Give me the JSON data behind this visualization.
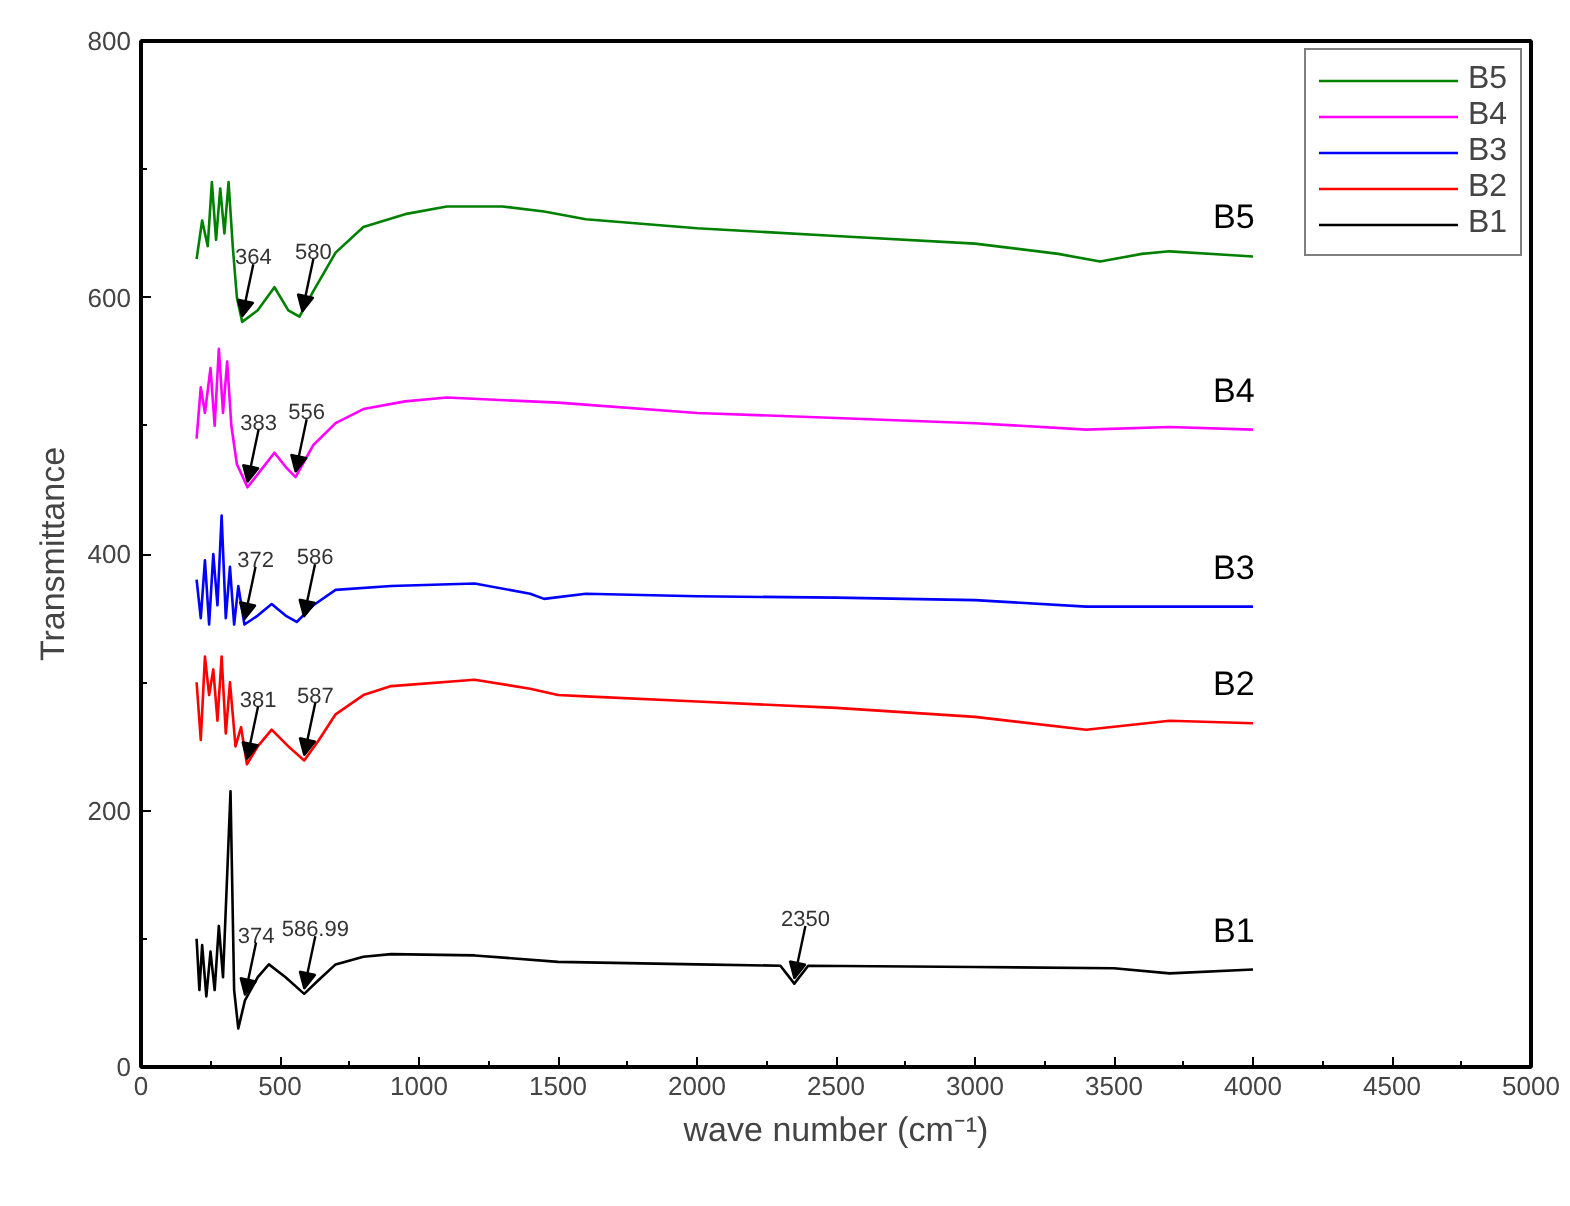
{
  "chart_data": {
    "type": "line",
    "xlabel": "wave number (cm⁻¹)",
    "ylabel": "Transmittance",
    "xlim": [
      0,
      5000
    ],
    "xticks": [
      0,
      500,
      1000,
      1500,
      2000,
      2500,
      3000,
      3500,
      4000,
      4500,
      5000
    ],
    "ylim": [
      0,
      800
    ],
    "yticks": [
      0,
      200,
      400,
      600,
      800
    ],
    "grid": false,
    "legend": "top right",
    "marker": "none",
    "line_style": "solid",
    "series": [
      {
        "name": "B5",
        "color": "#008000",
        "x": [
          200,
          220,
          240,
          255,
          270,
          285,
          300,
          315,
          330,
          345,
          364,
          420,
          480,
          530,
          570,
          620,
          700,
          800,
          950,
          1100,
          1300,
          1450,
          1600,
          2000,
          2500,
          3000,
          3300,
          3450,
          3600,
          3700,
          4000
        ],
        "values": [
          630,
          660,
          640,
          690,
          645,
          685,
          650,
          690,
          640,
          600,
          581,
          590,
          608,
          590,
          585,
          605,
          635,
          655,
          665,
          671,
          671,
          667,
          661,
          654,
          648,
          642,
          634,
          628,
          634,
          636,
          632
        ]
      },
      {
        "name": "B4",
        "color": "#ff00ff",
        "x": [
          200,
          215,
          230,
          250,
          265,
          280,
          295,
          310,
          325,
          345,
          383,
          430,
          480,
          520,
          556,
          620,
          700,
          800,
          950,
          1100,
          1500,
          2000,
          2500,
          3000,
          3400,
          3700,
          4000
        ],
        "values": [
          490,
          530,
          510,
          545,
          500,
          560,
          510,
          550,
          500,
          470,
          452,
          465,
          479,
          468,
          460,
          485,
          502,
          513,
          519,
          522,
          518,
          510,
          506,
          502,
          497,
          499,
          497
        ]
      },
      {
        "name": "B3",
        "color": "#0000ff",
        "x": [
          200,
          215,
          230,
          245,
          260,
          275,
          290,
          305,
          320,
          335,
          350,
          372,
          420,
          470,
          520,
          560,
          620,
          700,
          900,
          1200,
          1400,
          1450,
          1600,
          2000,
          2500,
          3000,
          3400,
          4000
        ],
        "values": [
          380,
          350,
          395,
          345,
          400,
          360,
          430,
          350,
          390,
          345,
          375,
          345,
          352,
          361,
          352,
          347,
          360,
          372,
          375,
          377,
          369,
          365,
          369,
          367,
          366,
          364,
          359,
          359
        ]
      },
      {
        "name": "B2",
        "color": "#ff0000",
        "x": [
          200,
          215,
          230,
          245,
          260,
          275,
          290,
          305,
          320,
          340,
          360,
          381,
          420,
          470,
          530,
          587,
          640,
          700,
          800,
          900,
          1200,
          1400,
          1500,
          1600,
          2000,
          2500,
          3000,
          3400,
          3700,
          4000
        ],
        "values": [
          300,
          255,
          320,
          290,
          310,
          270,
          320,
          260,
          300,
          250,
          265,
          236,
          250,
          263,
          250,
          239,
          255,
          275,
          290,
          297,
          302,
          295,
          290,
          289,
          285,
          280,
          273,
          263,
          270,
          268
        ]
      },
      {
        "name": "B1",
        "color": "#000000",
        "x": [
          200,
          210,
          220,
          235,
          250,
          265,
          280,
          295,
          310,
          322,
          335,
          350,
          374,
          420,
          460,
          520,
          587,
          640,
          700,
          800,
          900,
          1200,
          1500,
          2000,
          2300,
          2350,
          2400,
          3000,
          3500,
          3700,
          4000
        ],
        "values": [
          100,
          60,
          95,
          55,
          90,
          60,
          110,
          70,
          150,
          215,
          60,
          30,
          52,
          70,
          80,
          70,
          57,
          68,
          80,
          86,
          88,
          87,
          82,
          80,
          79,
          65,
          79,
          78,
          77,
          73,
          76
        ]
      }
    ],
    "annotations": [
      {
        "text": "364",
        "x": 364,
        "y": 581
      },
      {
        "text": "580",
        "x": 580,
        "y": 585
      },
      {
        "text": "383",
        "x": 383,
        "y": 452
      },
      {
        "text": "556",
        "x": 556,
        "y": 460
      },
      {
        "text": "372",
        "x": 372,
        "y": 345
      },
      {
        "text": "586",
        "x": 586,
        "y": 347
      },
      {
        "text": "381",
        "x": 381,
        "y": 236
      },
      {
        "text": "587",
        "x": 587,
        "y": 239
      },
      {
        "text": "374",
        "x": 374,
        "y": 52
      },
      {
        "text": "586.99",
        "x": 587,
        "y": 57
      },
      {
        "text": "2350",
        "x": 2350,
        "y": 65
      }
    ]
  }
}
